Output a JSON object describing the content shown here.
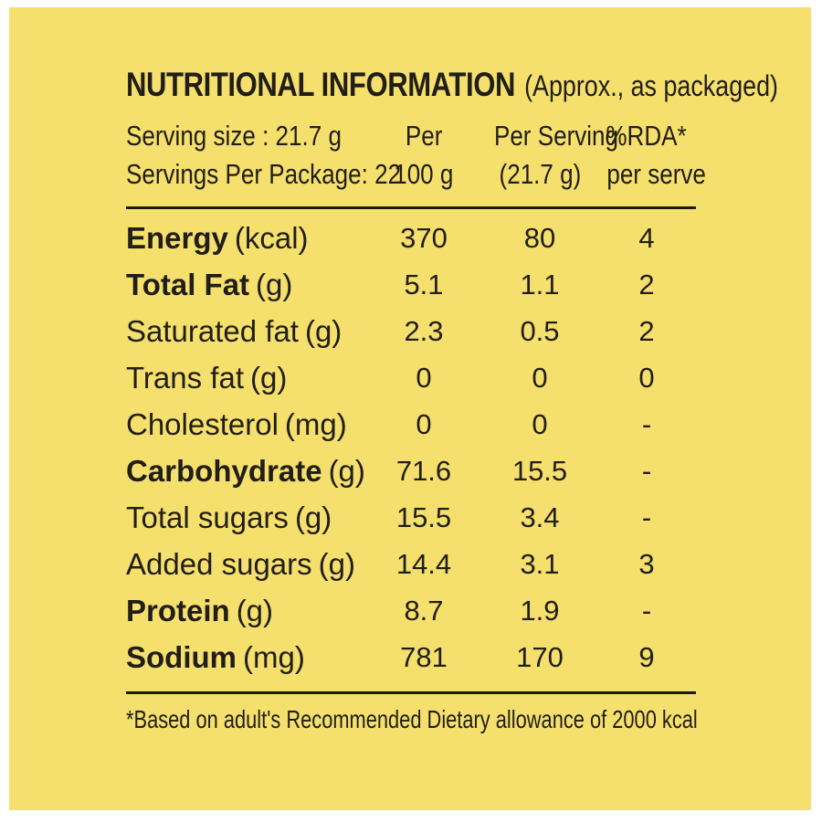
{
  "label": {
    "title": "NUTRITIONAL INFORMATION",
    "title_suffix": "(Approx., as packaged)",
    "serving_size": "Serving size : 21.7 g",
    "servings_per_package": "Servings Per Package: 22",
    "columns": {
      "per_line1": "Per",
      "per_line2": "100 g",
      "serving_line1": "Per Serving",
      "serving_line2": "(21.7 g)",
      "rda_line1": "%RDA*",
      "rda_line2": "per serve"
    },
    "rows": [
      {
        "name": "Energy",
        "unit": "(kcal)",
        "per_100g": "370",
        "per_serving": "80",
        "rda": "4"
      },
      {
        "name": "Total Fat",
        "unit": "(g)",
        "per_100g": "5.1",
        "per_serving": "1.1",
        "rda": "2"
      },
      {
        "name": "Saturated fat",
        "unit": "(g)",
        "per_100g": "2.3",
        "per_serving": "0.5",
        "rda": "2"
      },
      {
        "name": "Trans fat",
        "unit": "(g)",
        "per_100g": "0",
        "per_serving": "0",
        "rda": "0"
      },
      {
        "name": "Cholesterol",
        "unit": "(mg)",
        "per_100g": "0",
        "per_serving": "0",
        "rda": "-"
      },
      {
        "name": "Carbohydrate",
        "unit": "(g)",
        "per_100g": "71.6",
        "per_serving": "15.5",
        "rda": "-"
      },
      {
        "name": "Total sugars",
        "unit": "(g)",
        "per_100g": "15.5",
        "per_serving": "3.4",
        "rda": "-"
      },
      {
        "name": "Added sugars",
        "unit": "(g)",
        "per_100g": "14.4",
        "per_serving": "3.1",
        "rda": "3"
      },
      {
        "name": "Protein",
        "unit": "(g)",
        "per_100g": "8.7",
        "per_serving": "1.9",
        "rda": "-"
      },
      {
        "name": "Sodium",
        "unit": "(mg)",
        "per_100g": "781",
        "per_serving": "170",
        "rda": "9"
      }
    ],
    "footnote": "*Based on adult's Recommended Dietary allowance of 2000 kcal",
    "colors": {
      "background": "#f5e06d",
      "text": "#211d17",
      "frame": "#ffffff"
    }
  }
}
